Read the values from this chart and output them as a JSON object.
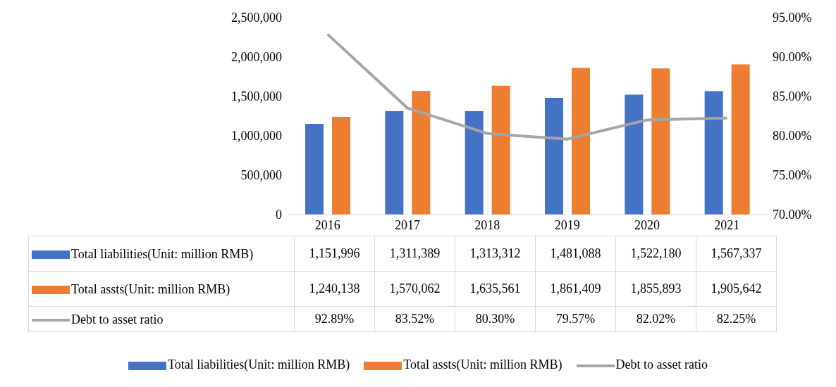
{
  "chart_data": {
    "type": "bar",
    "categories": [
      "2016",
      "2017",
      "2018",
      "2019",
      "2020",
      "2021"
    ],
    "series": [
      {
        "name": "Total liabilities(Unit: million RMB)",
        "color": "#4472c4",
        "values": [
          1151996,
          1311389,
          1313312,
          1481088,
          1522180,
          1567337
        ],
        "value_labels": [
          "1,151,996",
          "1,311,389",
          "1,313,312",
          "1,481,088",
          "1,522,180",
          "1,567,337"
        ]
      },
      {
        "name": "Total assts(Unit: million RMB)",
        "color": "#ed7d31",
        "values": [
          1240138,
          1570062,
          1635561,
          1861409,
          1855893,
          1905642
        ],
        "value_labels": [
          "1,240,138",
          "1,570,062",
          "1,635,561",
          "1,861,409",
          "1,855,893",
          "1,905,642"
        ]
      },
      {
        "name": "Debt to asset ratio",
        "type": "line",
        "axis": "y2",
        "color": "#a5a5a5",
        "values": [
          92.89,
          83.52,
          80.3,
          79.57,
          82.02,
          82.25
        ],
        "value_labels": [
          "92.89%",
          "83.52%",
          "80.30%",
          "79.57%",
          "82.02%",
          "82.25%"
        ]
      }
    ],
    "ylim": [
      0,
      2500000
    ],
    "yticks": [
      0,
      {
        "value": 500000,
        "label": "500,000"
      },
      {
        "value": 1000000,
        "label": "1,000,000"
      },
      {
        "value": 1500000,
        "label": "1,500,000"
      },
      {
        "value": 2000000,
        "label": "2,000,000"
      },
      {
        "value": 2500000,
        "label": "2,500,000"
      }
    ],
    "y2lim": [
      70,
      95
    ],
    "y2ticks": [
      {
        "value": 70,
        "label": "70.00%"
      },
      {
        "value": 75,
        "label": "75.00%"
      },
      {
        "value": 80,
        "label": "80.00%"
      },
      {
        "value": 85,
        "label": "85.00%"
      },
      {
        "value": 90,
        "label": "90.00%"
      },
      {
        "value": 95,
        "label": "95.00%"
      }
    ],
    "legend": "bottom"
  }
}
